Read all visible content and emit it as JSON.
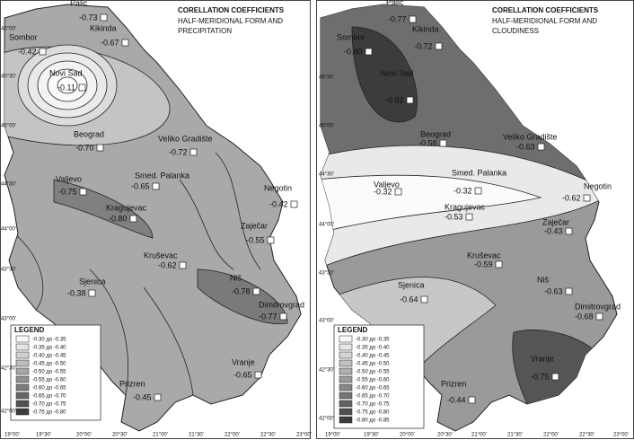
{
  "maps": [
    {
      "title": "CORELLATION COEFFICIENTS",
      "subtitle_lines": [
        "HALF-MERIDIONAL FORM AND",
        "PRECIPITATION"
      ],
      "stations": [
        {
          "name": "Palic",
          "value": "-0.73"
        },
        {
          "name": "Sombor",
          "value": "-0.42"
        },
        {
          "name": "Kikinda",
          "value": "-0.67"
        },
        {
          "name": "Novi Sad",
          "value": "-0.11"
        },
        {
          "name": "Beograd",
          "value": "-0.70"
        },
        {
          "name": "Veliko Gradište",
          "value": "-0.72"
        },
        {
          "name": "Smed. Palanka",
          "value": "-0.65"
        },
        {
          "name": "Valjevo",
          "value": "-0.75"
        },
        {
          "name": "Negotin",
          "value": "-0.42"
        },
        {
          "name": "Kragujevac",
          "value": "-0.80"
        },
        {
          "name": "Zaječar",
          "value": "-0.55"
        },
        {
          "name": "Kruševac",
          "value": "-0.62"
        },
        {
          "name": "Sjenica",
          "value": "-0.38"
        },
        {
          "name": "Niš",
          "value": "-0.78"
        },
        {
          "name": "Dimitrovgrad",
          "value": "-0.77"
        },
        {
          "name": "Vranje",
          "value": "-0.65"
        },
        {
          "name": "Prizren",
          "value": "-0.45"
        }
      ],
      "legend": {
        "title": "LEGEND",
        "items": [
          "-0.30 до -0.35",
          "-0.35 до -0.40",
          "-0.40 до -0.45",
          "-0.45 до -0.50",
          "-0.50 до -0.55",
          "-0.55 до -0.60",
          "-0.60 до -0.65",
          "-0.65 до -0.70",
          "-0.70 до -0.75",
          "-0.75 до -0.80"
        ]
      },
      "lat_labels": [
        "46°00'",
        "45°30'",
        "45°00'",
        "44°30'",
        "44°00'",
        "43°30'",
        "43°00'",
        "42°30'",
        "42°00'"
      ],
      "lon_labels": [
        "19°00'",
        "19°30'",
        "20°00'",
        "20°30'",
        "21°00'",
        "21°30'",
        "22°00'",
        "22°30'",
        "23°00'"
      ]
    },
    {
      "title": "CORELLATION COEFFICIENTS",
      "subtitle_lines": [
        "HALF-MERIDIONAL FORM AND",
        "CLOUDINESS"
      ],
      "stations": [
        {
          "name": "Palic",
          "value": "-0.77"
        },
        {
          "name": "Sombor",
          "value": "-0.80"
        },
        {
          "name": "Kikinda",
          "value": "-0.72"
        },
        {
          "name": "Novi Sad",
          "value": "-0.82"
        },
        {
          "name": "Beograd",
          "value": "-0.58"
        },
        {
          "name": "Veliko Gradište",
          "value": "-0.63"
        },
        {
          "name": "Smed. Palanka",
          "value": "-0.32"
        },
        {
          "name": "Valjevo",
          "value": "-0.32"
        },
        {
          "name": "Negotin",
          "value": "-0.62"
        },
        {
          "name": "Kragujevac",
          "value": "-0.53"
        },
        {
          "name": "Zaječar",
          "value": "-0.43"
        },
        {
          "name": "Kruševac",
          "value": "-0.59"
        },
        {
          "name": "Sjenica",
          "value": "-0.64"
        },
        {
          "name": "Niš",
          "value": "-0.63"
        },
        {
          "name": "Dimitrovgrad",
          "value": "-0.68"
        },
        {
          "name": "Vranje",
          "value": "-0.75"
        },
        {
          "name": "Prizren",
          "value": "-0.44"
        }
      ],
      "legend": {
        "title": "LEGEND",
        "items": [
          "-0.30 до -0.35",
          "-0.35 до -0.40",
          "-0.40 до -0.45",
          "-0.45 до -0.50",
          "-0.50 до -0.55",
          "-0.55 до -0.60",
          "-0.60 до -0.65",
          "-0.65 до -0.70",
          "-0.70 до -0.75",
          "-0.75 до -0.80",
          "-0.80 до -0.85"
        ]
      },
      "lat_labels": [
        "45°30'",
        "45°00'",
        "44°30'",
        "44°00'",
        "43°30'",
        "43°00'",
        "42°30'",
        "42°00'"
      ],
      "lon_labels": [
        "19°00'",
        "19°30'",
        "20°00'",
        "20°30'",
        "21°00'",
        "21°30'",
        "22°00'",
        "22°30'",
        "23°00'"
      ]
    }
  ]
}
